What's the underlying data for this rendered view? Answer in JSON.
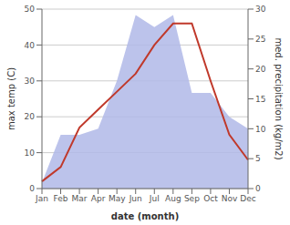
{
  "chart_data": {
    "type": "line",
    "xlabel": "date (month)",
    "ylabel": "max temp (C)",
    "y2label": "med. precipitation (kg/m2)",
    "categories": [
      "Jan",
      "Feb",
      "Mar",
      "Apr",
      "May",
      "Jun",
      "Jul",
      "Aug",
      "Sep",
      "Oct",
      "Nov",
      "Dec"
    ],
    "series": [
      {
        "type": "area",
        "axis": "y2",
        "color": "#b0b8e8",
        "values": [
          1,
          9,
          9,
          10,
          18,
          29,
          27,
          29,
          16,
          16,
          12,
          10
        ]
      },
      {
        "type": "line",
        "color": "#c0392b",
        "values": [
          2,
          6,
          17,
          22,
          27,
          32,
          40,
          46,
          46,
          30,
          15,
          8
        ]
      }
    ],
    "ylim": [
      0,
      50
    ],
    "yticks": [
      0,
      10,
      20,
      30,
      40,
      50
    ],
    "y2lim": [
      0,
      30
    ],
    "y2ticks": [
      0,
      5,
      10,
      15,
      20,
      25,
      30
    ],
    "grid": true
  }
}
